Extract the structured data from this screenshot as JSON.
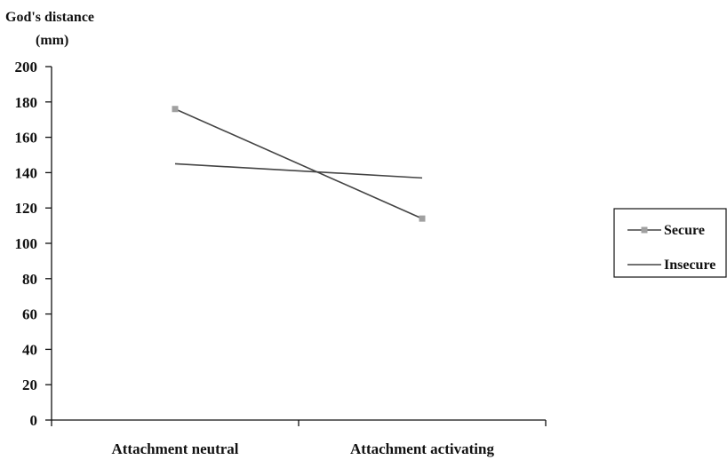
{
  "chart_data": {
    "type": "line",
    "title": "",
    "ylabel_lines": [
      "God's distance",
      "(mm)"
    ],
    "xlabel": "",
    "categories": [
      "Attachment neutral",
      "Attachment activating"
    ],
    "ylim": [
      0,
      200
    ],
    "yticks": [
      0,
      20,
      40,
      60,
      80,
      100,
      120,
      140,
      160,
      180,
      200
    ],
    "grid": false,
    "legend_position": "right",
    "series": [
      {
        "name": "Secure",
        "values": [
          176,
          114
        ],
        "color": "#444444",
        "marker": "square",
        "marker_color": "#a0a0a0"
      },
      {
        "name": "Insecure",
        "values": [
          145,
          137
        ],
        "color": "#444444",
        "marker": "none"
      }
    ]
  }
}
